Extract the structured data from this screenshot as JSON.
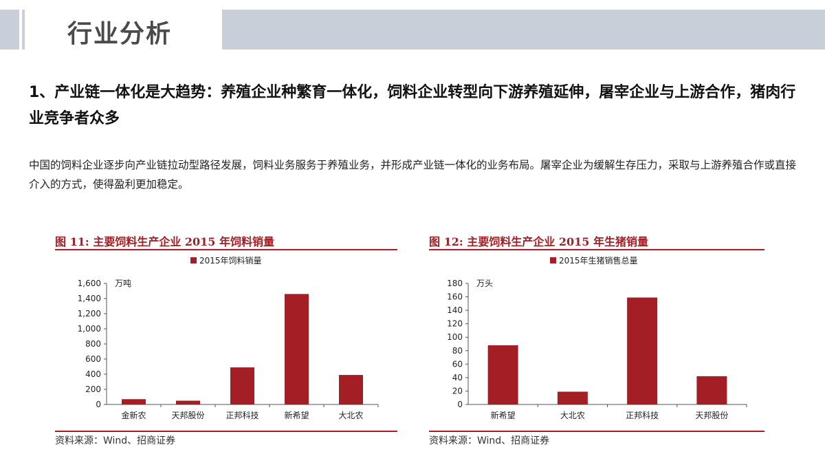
{
  "page": {
    "title": "行业分析"
  },
  "headline": "1、产业链一体化是大趋势：养殖企业种繁育一体化，饲料企业转型向下游养殖延伸，屠宰企业与上游合作，猪肉行业竞争者众多",
  "body": "中国的饲料企业逐步向产业链拉动型路径发展，饲料业务服务于养殖业务，并形成产业链一体化的业务布局。屠宰企业为缓解生存压力，采取与上游养殖合作或直接介入的方式，使得盈利更加稳定。",
  "colors": {
    "bar": "#a31f25",
    "accent": "#a31f25",
    "band": "#c9cfd8"
  },
  "figures": [
    {
      "title": "图  11:  主要饲料生产企业 2015 年饲料销量",
      "source": "资料来源：Wind、招商证券"
    },
    {
      "title": "图  12:  主要饲料生产企业 2015 年生猪销量",
      "source": "资料来源：Wind、招商证券"
    }
  ],
  "chart_data": [
    {
      "type": "bar",
      "title": "图 11: 主要饲料生产企业 2015 年饲料销量",
      "categories": [
        "金新农",
        "天邦股份",
        "正邦科技",
        "新希望",
        "大北农"
      ],
      "series": [
        {
          "name": "2015年饲料销量",
          "values": [
            70,
            50,
            490,
            1460,
            390
          ]
        }
      ],
      "ylabel": "万吨",
      "ylim": [
        0,
        1600
      ],
      "yticks": [
        0,
        200,
        400,
        600,
        800,
        1000,
        1200,
        1400,
        1600
      ],
      "ytick_labels": [
        "0",
        "200",
        "400",
        "600",
        "800",
        "1,000",
        "1,200",
        "1,400",
        "1,600"
      ],
      "legend": "top",
      "grid": false
    },
    {
      "type": "bar",
      "title": "图 12: 主要饲料生产企业 2015 年生猪销量",
      "categories": [
        "新希望",
        "大北农",
        "正邦科技",
        "天邦股份"
      ],
      "series": [
        {
          "name": "2015年生猪销售总量",
          "values": [
            88,
            19,
            159,
            42
          ]
        }
      ],
      "ylabel": "万头",
      "ylim": [
        0,
        180
      ],
      "yticks": [
        0,
        20,
        40,
        60,
        80,
        100,
        120,
        140,
        160,
        180
      ],
      "ytick_labels": [
        "0",
        "20",
        "40",
        "60",
        "80",
        "100",
        "120",
        "140",
        "160",
        "180"
      ],
      "legend": "top",
      "grid": false
    }
  ]
}
